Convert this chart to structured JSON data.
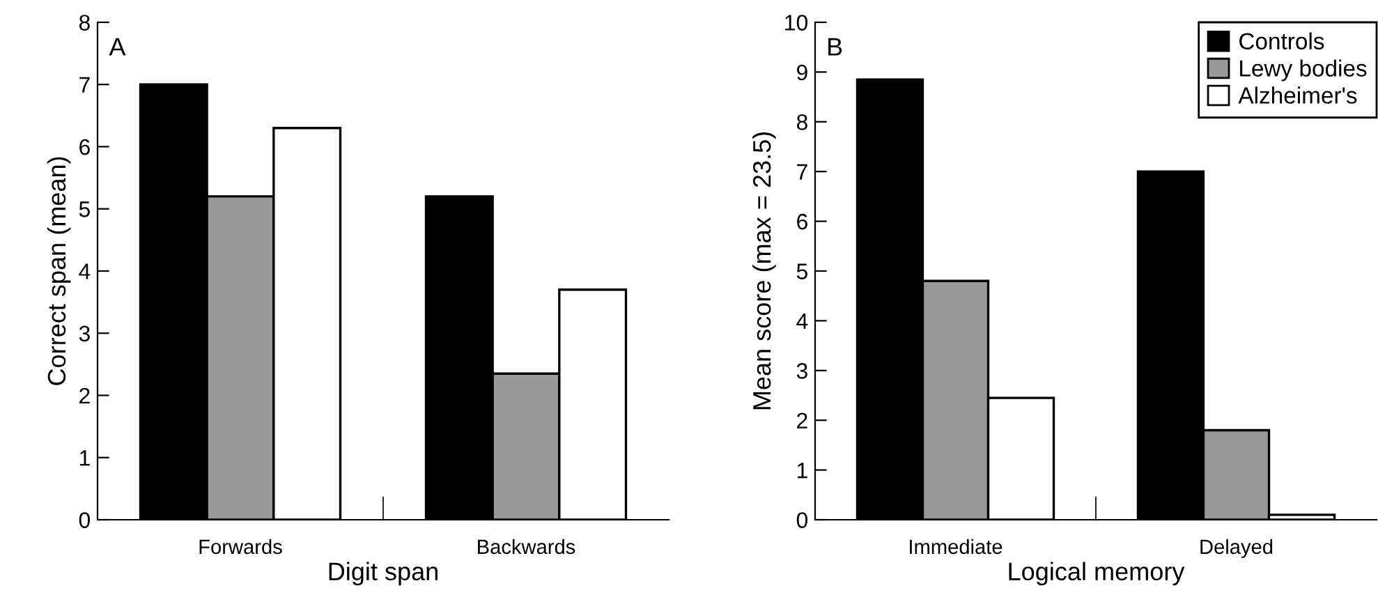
{
  "chart_data": [
    {
      "type": "bar",
      "annotations": [
        "A"
      ],
      "xlabel": "Digit span",
      "ylabel": "Correct span (mean)",
      "categories": [
        "Forwards",
        "Backwards"
      ],
      "series": [
        {
          "color": "#000000",
          "values": [
            7.0,
            5.2
          ]
        },
        {
          "color": "#999999",
          "values": [
            5.2,
            2.35
          ]
        },
        {
          "color": "#ffffff",
          "values": [
            6.3,
            3.7
          ]
        }
      ],
      "ylim": [
        0,
        8
      ],
      "yticks": [
        0,
        1,
        2,
        3,
        4,
        5,
        6,
        7,
        8
      ],
      "grid": false,
      "legend": false
    },
    {
      "type": "bar",
      "annotations": [
        "B"
      ],
      "xlabel": "Logical memory",
      "ylabel": "Mean score (max = 23.5)",
      "categories": [
        "Immediate",
        "Delayed"
      ],
      "series": [
        {
          "name": "Controls",
          "color": "#000000",
          "values": [
            8.85,
            7.0
          ]
        },
        {
          "name": "Lewy bodies",
          "color": "#999999",
          "values": [
            4.8,
            1.8
          ]
        },
        {
          "name": "Alzheimer's",
          "color": "#ffffff",
          "values": [
            2.45,
            0.1
          ]
        }
      ],
      "ylim": [
        0,
        10
      ],
      "yticks": [
        0,
        1,
        2,
        3,
        4,
        5,
        6,
        7,
        8,
        9,
        10
      ],
      "grid": false,
      "legend": "top right"
    }
  ]
}
